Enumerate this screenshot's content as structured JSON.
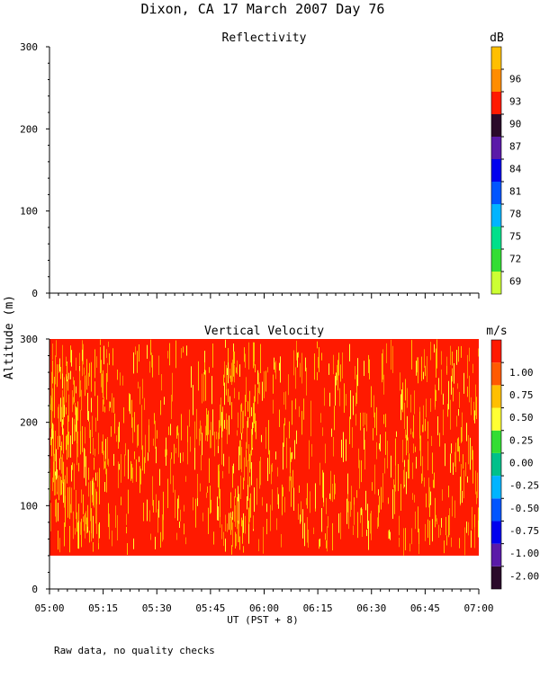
{
  "page": {
    "title": "Dixon, CA 17 March 2007  Day  76",
    "footnote": "Raw data, no quality checks"
  },
  "chart_data": [
    {
      "type": "heatmap",
      "title": "Reflectivity",
      "ylabel": "Altitude (m)",
      "xlabel": "UT  (PST + 8)",
      "x_tick_labels": [
        "05:00",
        "05:15",
        "05:30",
        "05:45",
        "06:00",
        "06:15",
        "06:30",
        "06:45",
        "07:00"
      ],
      "y_ticks": [
        0,
        100,
        200,
        300
      ],
      "ylim": [
        0,
        300
      ],
      "colorbar": {
        "unit": "dB",
        "labels": [
          "69",
          "72",
          "75",
          "78",
          "81",
          "84",
          "87",
          "90",
          "93",
          "96"
        ],
        "colors": [
          "#ccff33",
          "#33dd33",
          "#00e08a",
          "#00b4ff",
          "#0055ff",
          "#0000ee",
          "#5a1aa8",
          "#2a0a2a",
          "#ff1a00",
          "#ff8c00",
          "#ffbf00"
        ]
      },
      "data_present": false
    },
    {
      "type": "heatmap",
      "title": "Vertical Velocity",
      "ylabel": "Altitude (m)",
      "xlabel": "UT  (PST + 8)",
      "x_tick_labels": [
        "05:00",
        "05:15",
        "05:30",
        "05:45",
        "06:00",
        "06:15",
        "06:30",
        "06:45",
        "07:00"
      ],
      "y_ticks": [
        0,
        100,
        200,
        300
      ],
      "ylim": [
        0,
        300
      ],
      "data_altitude_range": [
        40,
        300
      ],
      "dominant_value": "> 1.00",
      "colorbar": {
        "unit": "m/s",
        "labels": [
          "-2.00",
          "-1.00",
          "-0.75",
          "-0.50",
          "-0.25",
          "0.00",
          "0.25",
          "0.50",
          "0.75",
          "1.00"
        ],
        "colors": [
          "#2a0a2a",
          "#5a1aa8",
          "#0000ee",
          "#0055ff",
          "#00b4ff",
          "#00c08a",
          "#33dd33",
          "#ffff33",
          "#ffbf00",
          "#ff5a00",
          "#ff1a00"
        ]
      },
      "data_present": true
    }
  ]
}
